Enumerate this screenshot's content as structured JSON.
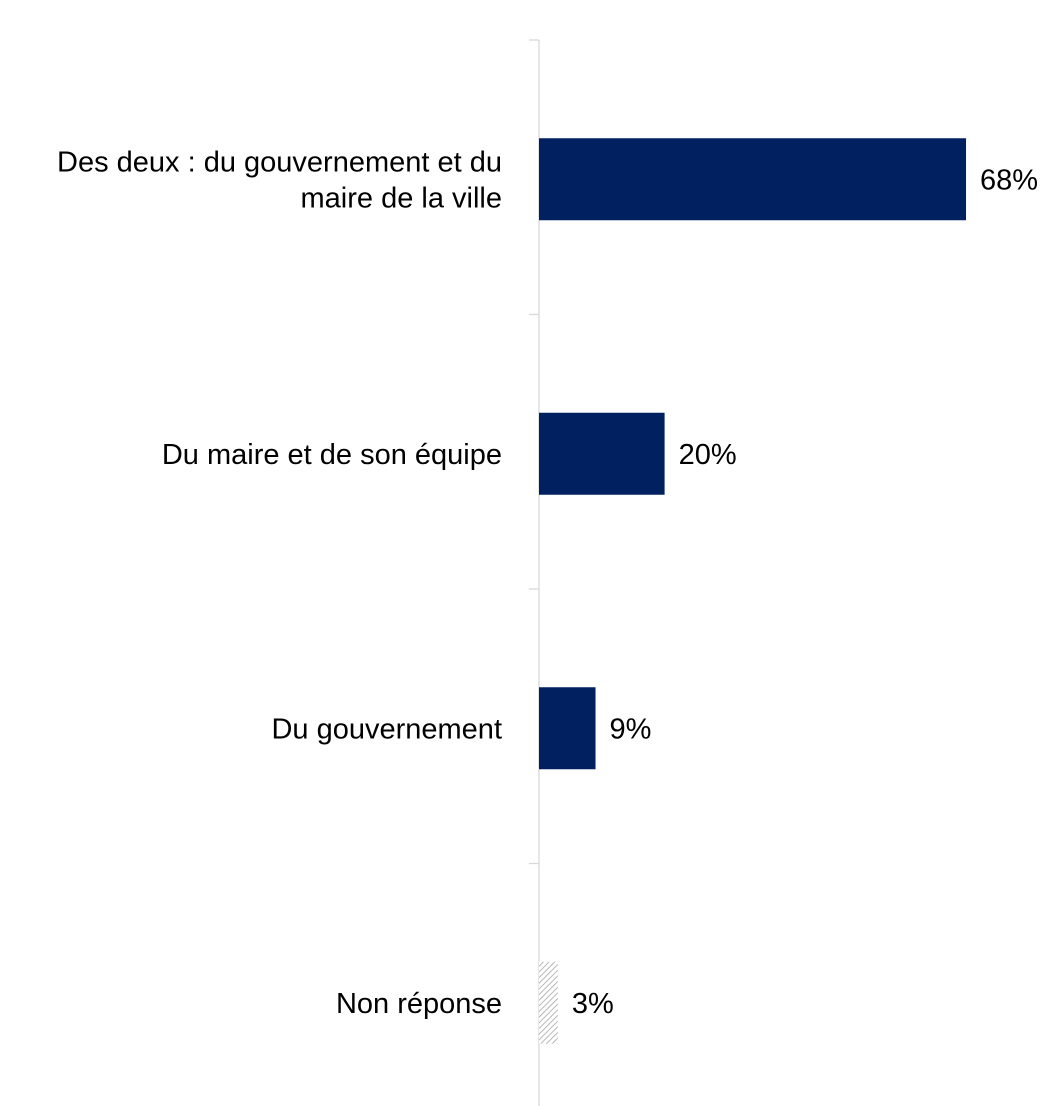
{
  "chart_data": {
    "type": "bar",
    "orientation": "horizontal",
    "categories": [
      [
        "Des deux : du gouvernement et du",
        "maire de la ville"
      ],
      [
        "Du maire et de son équipe"
      ],
      [
        "Du gouvernement"
      ],
      [
        "Non réponse"
      ]
    ],
    "values": [
      68,
      20,
      9,
      3
    ],
    "value_labels": [
      "68%",
      "20%",
      "9%",
      "3%"
    ],
    "value_unit": "%",
    "bar_styles": [
      "solid",
      "solid",
      "solid",
      "hatched"
    ],
    "xlim": [
      0,
      100
    ],
    "grid": false,
    "legend": "none",
    "title": "",
    "xlabel": "",
    "ylabel": ""
  },
  "colors": {
    "bar": "#002060",
    "hatch": "#a6a6a6",
    "axis": "#d9d9d9"
  }
}
